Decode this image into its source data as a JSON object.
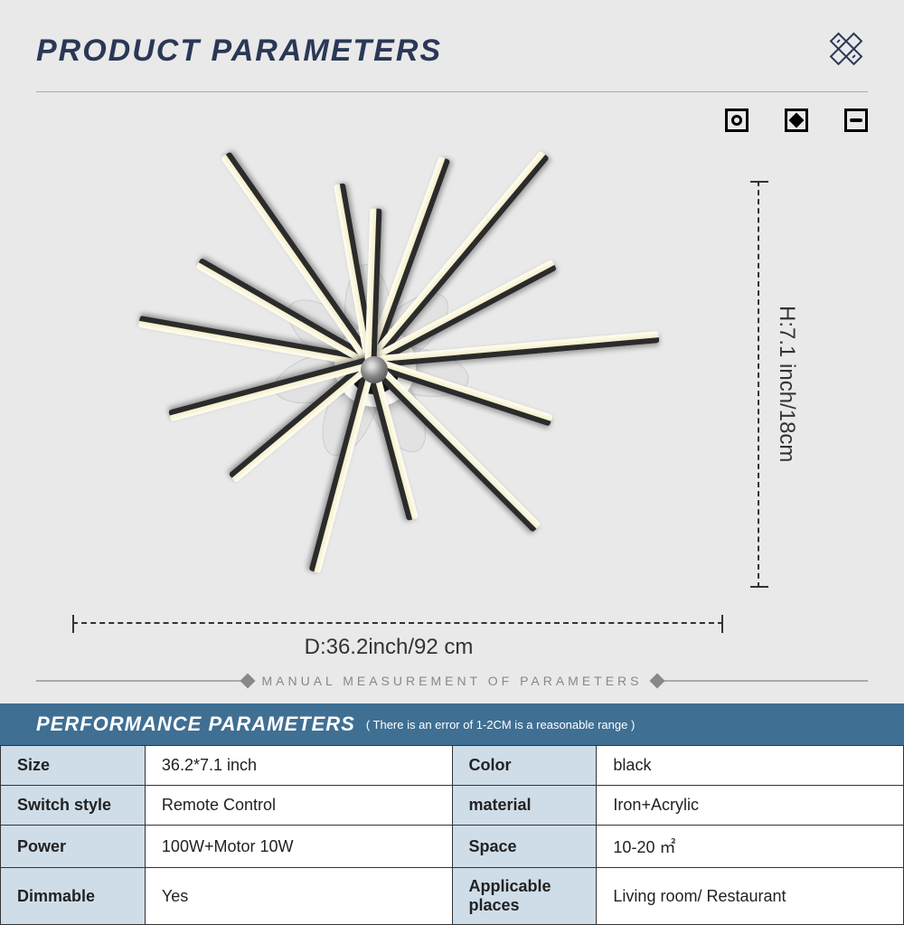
{
  "header": {
    "title": "PRODUCT PARAMETERS"
  },
  "dimensions": {
    "width_label": "D:36.2inch/92 cm",
    "height_label": "H:7.1 inch/18cm"
  },
  "manual_note": "MANUAL MEASUREMENT OF PARAMETERS",
  "perf": {
    "title": "PERFORMANCE PARAMETERS",
    "note": "( There is an error of 1-2CM is a reasonable range )"
  },
  "specs": {
    "rows": [
      {
        "l1": "Size",
        "v1": "36.2*7.1 inch",
        "l2": "Color",
        "v2": "black"
      },
      {
        "l1": "Switch style",
        "v1": "Remote Control",
        "l2": "material",
        "v2": "Iron+Acrylic"
      },
      {
        "l1": "Power",
        "v1": "100W+Motor 10W",
        "l2": "Space",
        "v2": "10-20 ㎡"
      },
      {
        "l1": "Dimmable",
        "v1": "Yes",
        "l2": "Applicable places",
        "v2": "Living room/ Restaurant"
      }
    ]
  },
  "product": {
    "arms": [
      {
        "angle": -170,
        "len": 260
      },
      {
        "angle": -150,
        "len": 220
      },
      {
        "angle": -125,
        "len": 280
      },
      {
        "angle": -100,
        "len": 200
      },
      {
        "angle": -70,
        "len": 240
      },
      {
        "angle": -50,
        "len": 300
      },
      {
        "angle": -28,
        "len": 230
      },
      {
        "angle": -5,
        "len": 320
      },
      {
        "angle": 18,
        "len": 210
      },
      {
        "angle": 45,
        "len": 260
      },
      {
        "angle": 75,
        "len": 180
      },
      {
        "angle": 105,
        "len": 240
      },
      {
        "angle": 140,
        "len": 200
      },
      {
        "angle": 165,
        "len": 230
      },
      {
        "angle": -88,
        "len": 170
      }
    ],
    "fan_blades": 7
  },
  "colors": {
    "background": "#e9e9e9",
    "title": "#2a3856",
    "perf_header": "#3f6f93",
    "table_label_bg": "#cfdde9",
    "arm_light": "#f5eecb",
    "arm_dark": "#2b2b2b"
  }
}
